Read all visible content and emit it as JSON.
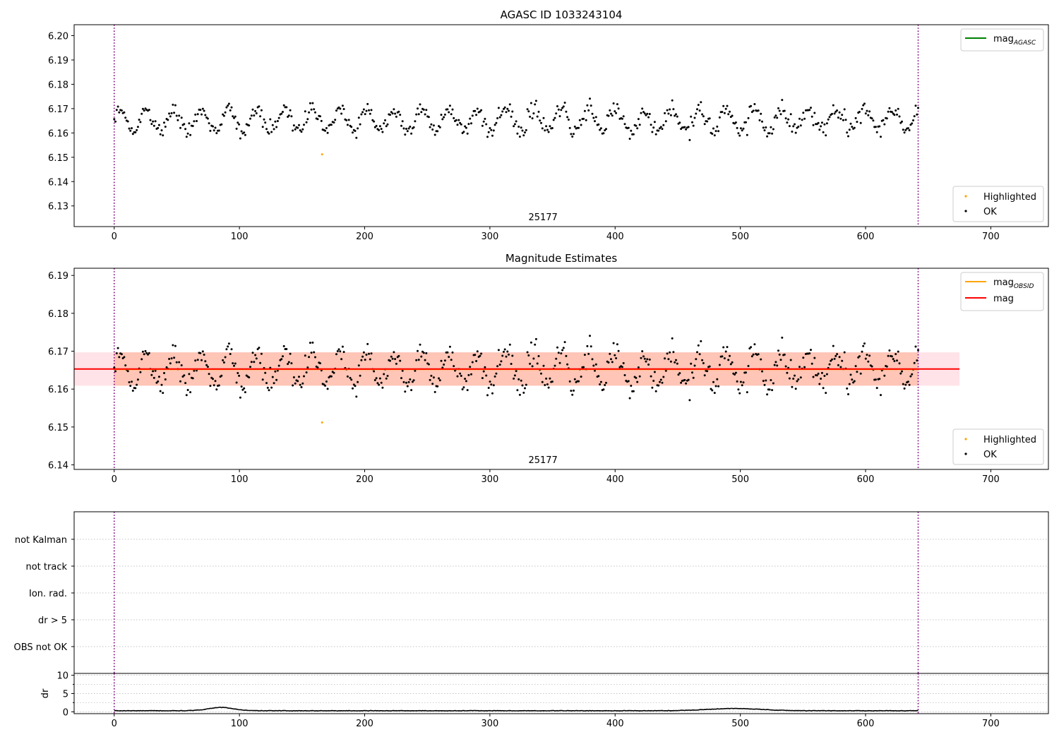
{
  "colors": {
    "ok": "#000000",
    "highlighted": "#ffa500",
    "mag_agasc": "#008000",
    "mag_obsid": "#ffa500",
    "mag": "#ff0000",
    "obs_line": "#800080",
    "band_outer": "#ffc0cb",
    "band_inner": "#ffa07a",
    "grid": "#b0b0b0"
  },
  "chart_data": [
    {
      "type": "scatter",
      "title": "AGASC ID 1033243104",
      "xlim": [
        -32,
        746
      ],
      "ylim": [
        6.1215,
        6.2045
      ],
      "xticks": [
        0,
        100,
        200,
        300,
        400,
        500,
        600,
        700
      ],
      "yticks": [
        6.13,
        6.14,
        6.15,
        6.16,
        6.17,
        6.18,
        6.19,
        6.2
      ],
      "ytick_labels": [
        "6.13",
        "6.14",
        "6.15",
        "6.16",
        "6.17",
        "6.18",
        "6.19",
        "6.20"
      ],
      "obs_lines": [
        0,
        642
      ],
      "obs_label": {
        "text": "25177",
        "x": 321
      },
      "legend_lines": [
        {
          "name": "mag",
          "sub": "AGASC",
          "color_key": "mag_agasc"
        }
      ],
      "legend_points": [
        {
          "name": "Highlighted",
          "color_key": "highlighted"
        },
        {
          "name": "OK",
          "color_key": "ok"
        }
      ],
      "legend_placement": "upper-right / lower-right",
      "series": [
        {
          "name": "OK",
          "n_points": 645,
          "x_range": [
            0,
            642
          ],
          "mean": 6.1653,
          "std": 0.0048,
          "period": 22
        },
        {
          "name": "Highlighted",
          "points": [
            [
              166,
              6.1512
            ]
          ]
        }
      ]
    },
    {
      "type": "scatter",
      "title": "Magnitude Estimates",
      "xlim": [
        -32,
        746
      ],
      "ylim": [
        6.1388,
        6.1919
      ],
      "xticks": [
        0,
        100,
        200,
        300,
        400,
        500,
        600,
        700
      ],
      "yticks": [
        6.14,
        6.15,
        6.16,
        6.17,
        6.18,
        6.19
      ],
      "ytick_labels": [
        "6.14",
        "6.15",
        "6.16",
        "6.17",
        "6.18",
        "6.19"
      ],
      "obs_lines": [
        0,
        642
      ],
      "obs_label": {
        "text": "25177",
        "x": 321
      },
      "mag_line": {
        "value": 6.1653,
        "band": [
          6.1609,
          6.1697
        ],
        "x_range": [
          -32,
          675
        ]
      },
      "mag_obsid": {
        "value": 6.1652,
        "band": [
          6.1609,
          6.1697
        ],
        "x_range": [
          0,
          642
        ]
      },
      "legend_lines": [
        {
          "name": "mag",
          "sub": "OBSID",
          "color_key": "mag_obsid"
        },
        {
          "name": "mag",
          "sub": "",
          "color_key": "mag"
        }
      ],
      "legend_points": [
        {
          "name": "Highlighted",
          "color_key": "highlighted"
        },
        {
          "name": "OK",
          "color_key": "ok"
        }
      ],
      "legend_placement": "upper-right / lower-right",
      "series": [
        {
          "name": "OK",
          "n_points": 645,
          "x_range": [
            0,
            642
          ],
          "mean": 6.1653,
          "std": 0.0048,
          "period": 22
        },
        {
          "name": "Highlighted",
          "points": [
            [
              166,
              6.1512
            ]
          ]
        }
      ]
    },
    {
      "type": "scatter",
      "title": "",
      "xlim": [
        -32,
        746
      ],
      "flag_labels": [
        "not Kalman",
        "not track",
        "Ion. rad.",
        "dr > 5",
        "OBS not OK"
      ],
      "obs_lines": [
        0,
        642
      ],
      "series": []
    },
    {
      "type": "line",
      "title": "",
      "xlim": [
        -32,
        746
      ],
      "ylim": [
        -0.5,
        10.5
      ],
      "xticks": [
        0,
        100,
        200,
        300,
        400,
        500,
        600,
        700
      ],
      "yticks": [
        0,
        5,
        10
      ],
      "ylabel": "dr",
      "obs_lines": [
        0,
        642
      ],
      "series": [
        {
          "name": "dr",
          "baseline": 0.3,
          "bumps": [
            {
              "center": 85,
              "width": 14,
              "height": 0.9
            },
            {
              "center": 495,
              "width": 30,
              "height": 0.6
            }
          ],
          "x_range": [
            0,
            642
          ]
        }
      ]
    }
  ]
}
